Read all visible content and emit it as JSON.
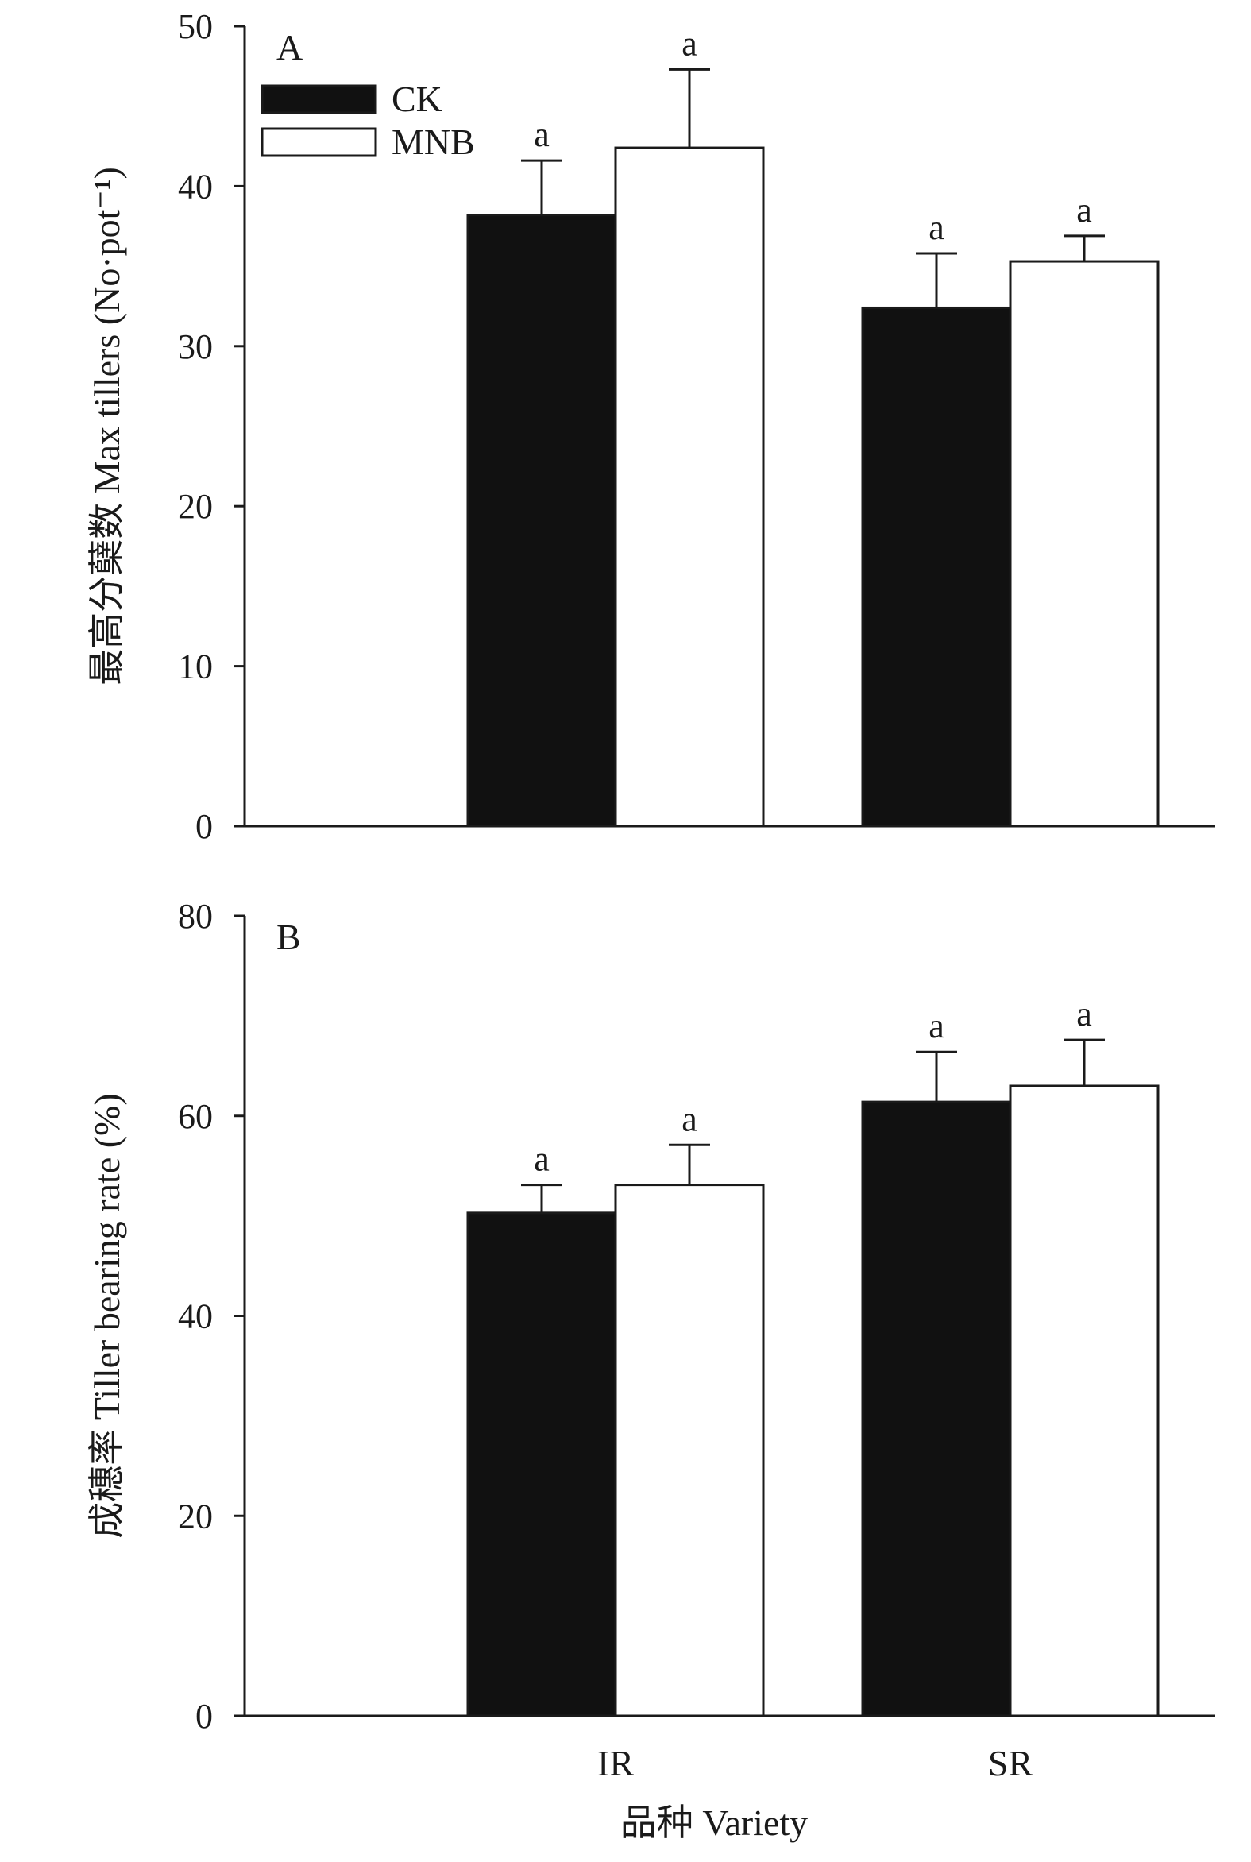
{
  "chart_data": [
    {
      "type": "bar",
      "panel_label": "A",
      "title": "",
      "xlabel": "",
      "ylabel": "最高分蘖数 Max tillers (No·pot⁻¹)",
      "ylim": [
        0,
        50
      ],
      "yticks": [
        0,
        10,
        20,
        30,
        40,
        50
      ],
      "categories": [
        "IR",
        "SR"
      ],
      "series": [
        {
          "name": "CK",
          "color": "#111111",
          "values": [
            38.2,
            32.4
          ],
          "errors": [
            3.4,
            3.4
          ],
          "sig": [
            "a",
            "a"
          ]
        },
        {
          "name": "MNB",
          "color": "#ffffff",
          "values": [
            42.4,
            35.3
          ],
          "errors": [
            4.9,
            1.6
          ],
          "sig": [
            "a",
            "a"
          ]
        }
      ],
      "legend": "top-left"
    },
    {
      "type": "bar",
      "panel_label": "B",
      "title": "",
      "xlabel": "品种 Variety",
      "ylabel": "成穗率 Tiller bearing rate (%)",
      "ylim": [
        0,
        80
      ],
      "yticks": [
        0,
        20,
        40,
        60,
        80
      ],
      "categories": [
        "IR",
        "SR"
      ],
      "series": [
        {
          "name": "CK",
          "color": "#111111",
          "values": [
            50.3,
            61.4
          ],
          "errors": [
            2.8,
            5.0
          ],
          "sig": [
            "a",
            "a"
          ]
        },
        {
          "name": "MNB",
          "color": "#ffffff",
          "values": [
            53.1,
            63.0
          ],
          "errors": [
            4.0,
            4.6
          ],
          "sig": [
            "a",
            "a"
          ]
        }
      ]
    }
  ]
}
